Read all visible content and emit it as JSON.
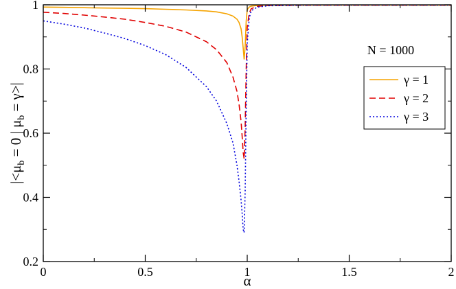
{
  "chart_data": {
    "type": "line",
    "title": "",
    "xlabel": "α",
    "ylabel": "|<μ_b = 0 | μ_b = γ>|",
    "ylabel_parts": {
      "pre": "|<μ",
      "sub1": "b",
      "mid": " = 0 | μ",
      "sub2": "b",
      "post": " = γ>|"
    },
    "xlim": [
      0,
      2
    ],
    "ylim": [
      0.2,
      1.0
    ],
    "xticks": [
      0,
      0.5,
      1,
      1.5,
      2
    ],
    "xtick_labels": [
      "0",
      "0.5",
      "1",
      "1.5",
      "2"
    ],
    "yticks": [
      0.2,
      0.4,
      0.6,
      0.8,
      1.0
    ],
    "ytick_labels": [
      "0.2",
      "0.4",
      "0.6",
      "0.8",
      "1"
    ],
    "grid": false,
    "annotation": "N = 1000",
    "legend_position": "right",
    "series": [
      {
        "name": "γ = 1",
        "color": "#f5a300",
        "dash": "solid",
        "points": [
          [
            0,
            0.993
          ],
          [
            0.1,
            0.992
          ],
          [
            0.2,
            0.991
          ],
          [
            0.3,
            0.99
          ],
          [
            0.4,
            0.989
          ],
          [
            0.5,
            0.988
          ],
          [
            0.6,
            0.986
          ],
          [
            0.7,
            0.984
          ],
          [
            0.8,
            0.981
          ],
          [
            0.85,
            0.978
          ],
          [
            0.9,
            0.972
          ],
          [
            0.93,
            0.965
          ],
          [
            0.95,
            0.955
          ],
          [
            0.96,
            0.945
          ],
          [
            0.97,
            0.925
          ],
          [
            0.975,
            0.9
          ],
          [
            0.98,
            0.865
          ],
          [
            0.985,
            0.83
          ],
          [
            0.99,
            0.87
          ],
          [
            0.995,
            0.95
          ],
          [
            1.0,
            0.985
          ],
          [
            1.01,
            0.993
          ],
          [
            1.02,
            0.996
          ],
          [
            1.05,
            0.998
          ],
          [
            1.1,
            0.999
          ],
          [
            1.3,
            0.999
          ],
          [
            2.0,
            0.999
          ]
        ]
      },
      {
        "name": "γ = 2",
        "color": "#e00000",
        "dash": "dashed",
        "points": [
          [
            0,
            0.977
          ],
          [
            0.1,
            0.973
          ],
          [
            0.2,
            0.968
          ],
          [
            0.3,
            0.962
          ],
          [
            0.4,
            0.955
          ],
          [
            0.5,
            0.945
          ],
          [
            0.6,
            0.933
          ],
          [
            0.7,
            0.915
          ],
          [
            0.8,
            0.885
          ],
          [
            0.85,
            0.86
          ],
          [
            0.9,
            0.82
          ],
          [
            0.93,
            0.775
          ],
          [
            0.95,
            0.73
          ],
          [
            0.96,
            0.69
          ],
          [
            0.97,
            0.635
          ],
          [
            0.975,
            0.59
          ],
          [
            0.98,
            0.54
          ],
          [
            0.985,
            0.52
          ],
          [
            0.99,
            0.62
          ],
          [
            0.995,
            0.8
          ],
          [
            1.0,
            0.93
          ],
          [
            1.01,
            0.975
          ],
          [
            1.02,
            0.988
          ],
          [
            1.05,
            0.995
          ],
          [
            1.1,
            0.998
          ],
          [
            1.3,
            0.999
          ],
          [
            2.0,
            0.999
          ]
        ]
      },
      {
        "name": "γ = 3",
        "color": "#0000dd",
        "dash": "dotted",
        "points": [
          [
            0,
            0.95
          ],
          [
            0.1,
            0.94
          ],
          [
            0.2,
            0.928
          ],
          [
            0.3,
            0.912
          ],
          [
            0.4,
            0.895
          ],
          [
            0.5,
            0.873
          ],
          [
            0.6,
            0.845
          ],
          [
            0.7,
            0.805
          ],
          [
            0.8,
            0.745
          ],
          [
            0.85,
            0.7
          ],
          [
            0.9,
            0.63
          ],
          [
            0.93,
            0.57
          ],
          [
            0.95,
            0.5
          ],
          [
            0.96,
            0.45
          ],
          [
            0.97,
            0.39
          ],
          [
            0.975,
            0.35
          ],
          [
            0.98,
            0.3
          ],
          [
            0.985,
            0.29
          ],
          [
            0.99,
            0.42
          ],
          [
            0.995,
            0.68
          ],
          [
            1.0,
            0.88
          ],
          [
            1.01,
            0.96
          ],
          [
            1.02,
            0.982
          ],
          [
            1.05,
            0.993
          ],
          [
            1.1,
            0.997
          ],
          [
            1.3,
            0.999
          ],
          [
            2.0,
            0.999
          ]
        ]
      }
    ]
  }
}
